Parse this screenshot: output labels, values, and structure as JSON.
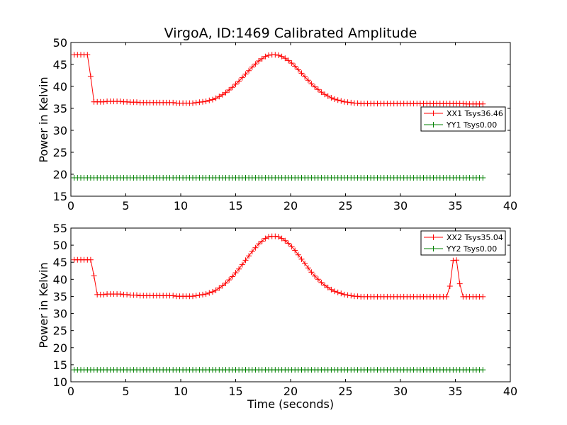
{
  "figure": {
    "title": "VirgoA, ID:1469 Calibrated Amplitude",
    "xlabel": "Time (seconds)"
  },
  "chart_data": [
    {
      "type": "line",
      "ylabel": "Power in Kelvin",
      "xlim": [
        0,
        40
      ],
      "ylim": [
        15,
        50
      ],
      "xticks": [
        0,
        5,
        10,
        15,
        20,
        25,
        30,
        35,
        40
      ],
      "yticks": [
        15,
        20,
        25,
        30,
        35,
        40,
        45,
        50
      ],
      "grid": false,
      "legend": "right",
      "series": [
        {
          "name": "XX1 Tsys36.46",
          "color": "#ff0000",
          "x": [
            0.3,
            0.6,
            0.9,
            1.2,
            1.5,
            1.8,
            2.1,
            2.4,
            2.7,
            3.0,
            3.3,
            3.6,
            3.9,
            4.2,
            4.5,
            4.8,
            5.1,
            5.4,
            5.7,
            6.0,
            6.3,
            6.6,
            6.9,
            7.2,
            7.5,
            7.8,
            8.1,
            8.4,
            8.7,
            9.0,
            9.3,
            9.6,
            9.9,
            10.2,
            10.5,
            10.8,
            11.1,
            11.4,
            11.7,
            12.0,
            12.3,
            12.6,
            12.9,
            13.2,
            13.5,
            13.8,
            14.1,
            14.4,
            14.7,
            15.0,
            15.3,
            15.6,
            15.9,
            16.2,
            16.5,
            16.8,
            17.1,
            17.4,
            17.7,
            18.0,
            18.3,
            18.6,
            18.9,
            19.2,
            19.5,
            19.8,
            20.1,
            20.4,
            20.7,
            21.0,
            21.3,
            21.6,
            21.9,
            22.2,
            22.5,
            22.8,
            23.1,
            23.4,
            23.7,
            24.0,
            24.3,
            24.6,
            24.9,
            25.2,
            25.5,
            25.8,
            26.1,
            26.4,
            26.7,
            27.0,
            27.3,
            27.6,
            27.9,
            28.2,
            28.5,
            28.8,
            29.1,
            29.4,
            29.7,
            30.0,
            30.3,
            30.6,
            30.9,
            31.2,
            31.5,
            31.8,
            32.1,
            32.4,
            32.7,
            33.0,
            33.3,
            33.6,
            33.9,
            34.2,
            34.5,
            34.8,
            35.1,
            35.4,
            35.7,
            36.0,
            36.3,
            36.6,
            36.9,
            37.2,
            37.5
          ],
          "y": [
            47.2,
            47.2,
            47.2,
            47.2,
            47.2,
            42.3,
            36.5,
            36.5,
            36.5,
            36.5,
            36.6,
            36.6,
            36.6,
            36.6,
            36.6,
            36.5,
            36.5,
            36.4,
            36.4,
            36.4,
            36.3,
            36.3,
            36.3,
            36.3,
            36.3,
            36.3,
            36.3,
            36.3,
            36.3,
            36.3,
            36.3,
            36.2,
            36.2,
            36.2,
            36.2,
            36.2,
            36.2,
            36.3,
            36.4,
            36.5,
            36.6,
            36.8,
            37.0,
            37.3,
            37.7,
            38.1,
            38.6,
            39.2,
            39.8,
            40.5,
            41.2,
            42.0,
            42.8,
            43.6,
            44.4,
            45.1,
            45.8,
            46.3,
            46.8,
            47.1,
            47.2,
            47.2,
            47.1,
            46.8,
            46.4,
            45.9,
            45.3,
            44.6,
            43.8,
            43.0,
            42.2,
            41.4,
            40.6,
            39.9,
            39.3,
            38.7,
            38.2,
            37.8,
            37.4,
            37.1,
            36.9,
            36.7,
            36.5,
            36.4,
            36.3,
            36.2,
            36.2,
            36.1,
            36.1,
            36.1,
            36.1,
            36.1,
            36.1,
            36.1,
            36.1,
            36.1,
            36.1,
            36.1,
            36.1,
            36.1,
            36.1,
            36.1,
            36.1,
            36.1,
            36.1,
            36.1,
            36.1,
            36.1,
            36.1,
            36.1,
            36.1,
            36.1,
            36.1,
            36.1,
            36.1,
            36.1,
            36.1,
            36.1,
            36.1,
            36.0,
            36.0,
            36.0,
            36.0,
            36.0,
            36.0
          ],
          "x_override_note": ""
        },
        {
          "name": "YY1 Tsys0.00",
          "color": "#008000",
          "x_start": 0.3,
          "x_step": 0.3,
          "count": 125,
          "y_const": 19.2
        }
      ]
    },
    {
      "type": "line",
      "ylabel": "Power in Kelvin",
      "xlim": [
        0,
        40
      ],
      "ylim": [
        10,
        55
      ],
      "xticks": [
        0,
        5,
        10,
        15,
        20,
        25,
        30,
        35,
        40
      ],
      "yticks": [
        10,
        15,
        20,
        25,
        30,
        35,
        40,
        45,
        50,
        55
      ],
      "grid": false,
      "legend": "top-right",
      "series": [
        {
          "name": "XX2 Tsys35.04",
          "color": "#ff0000"
        },
        {
          "name": "YY2 Tsys0.00",
          "color": "#008000",
          "x_start": 0.3,
          "x_step": 0.3,
          "count": 125,
          "y_const": 13.5
        }
      ]
    }
  ]
}
